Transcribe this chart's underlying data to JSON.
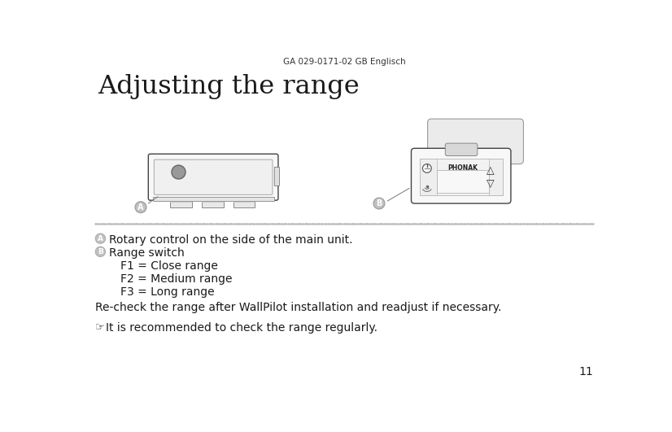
{
  "header_text": "GA 029-0171-02 GB Englisch",
  "title": "Adjusting the range",
  "label_A": "A",
  "label_B": "B",
  "text_A": "Rotary control on the side of the main unit.",
  "text_B": "Range switch",
  "text_f1": "F1 = Close range",
  "text_f2": "F2 = Medium range",
  "text_f3": "F3 = Long range",
  "text_recheck": "Re-check the range after WallPilot installation and readjust if necessary.",
  "text_tip": "It is recommended to check the range regularly.",
  "page_number": "11",
  "bg_color": "#ffffff",
  "text_color": "#1a1a1a",
  "label_circle_color": "#c0c0c0",
  "dotted_line_color": "#bbbbbb",
  "device_line_color": "#444444",
  "device_face_color": "#f8f8f8",
  "device_shadow_color": "#e0e0e0",
  "knob_color": "#999999"
}
